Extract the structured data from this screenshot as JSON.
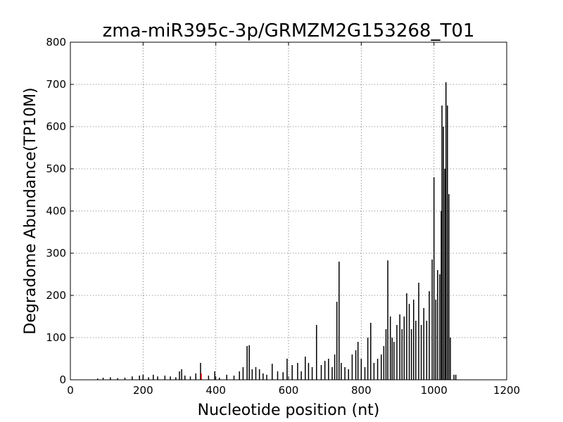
{
  "chart_data": {
    "type": "stem",
    "title": "zma-miR395c-3p/GRMZM2G153268_T01",
    "xlabel": "Nucleotide position (nt)",
    "ylabel": "Degradome Abundance(TP10M)",
    "xlim": [
      0,
      1200
    ],
    "xticks": [
      0,
      200,
      400,
      600,
      800,
      1000,
      1200
    ],
    "ylim": [
      0,
      800
    ],
    "yticks": [
      0,
      100,
      200,
      300,
      400,
      500,
      600,
      700,
      800
    ],
    "grid": true,
    "series": [
      {
        "color": "#000000",
        "x": [
          75,
          90,
          110,
          130,
          150,
          170,
          190,
          200,
          215,
          228,
          240,
          260,
          275,
          290,
          300,
          306,
          315,
          330,
          345,
          358,
          380,
          397,
          410,
          430,
          450,
          465,
          475,
          486,
          492,
          500,
          510,
          520,
          530,
          540,
          555,
          570,
          585,
          596,
          610,
          625,
          635,
          646,
          655,
          665,
          677,
          690,
          700,
          710,
          720,
          727,
          733,
          739,
          745,
          755,
          765,
          775,
          785,
          791,
          800,
          810,
          818,
          826,
          835,
          845,
          855,
          862,
          868,
          873,
          880,
          885,
          890,
          898,
          906,
          912,
          918,
          925,
          932,
          938,
          944,
          950,
          958,
          965,
          972,
          980,
          987,
          995,
          1000,
          1005,
          1010,
          1016,
          1020,
          1022,
          1026,
          1030,
          1033,
          1037,
          1041,
          1045,
          1055,
          1060
        ],
        "values": [
          3,
          5,
          6,
          4,
          5,
          8,
          10,
          12,
          6,
          12,
          8,
          10,
          8,
          6,
          20,
          25,
          10,
          8,
          15,
          40,
          10,
          20,
          5,
          12,
          10,
          20,
          30,
          80,
          82,
          25,
          30,
          25,
          15,
          12,
          38,
          20,
          18,
          50,
          35,
          40,
          20,
          55,
          40,
          30,
          130,
          35,
          45,
          50,
          30,
          60,
          185,
          280,
          40,
          30,
          25,
          60,
          70,
          90,
          50,
          30,
          100,
          135,
          40,
          50,
          60,
          80,
          120,
          283,
          150,
          100,
          90,
          130,
          155,
          120,
          150,
          205,
          180,
          120,
          190,
          140,
          230,
          130,
          170,
          140,
          210,
          285,
          480,
          190,
          260,
          250,
          400,
          650,
          600,
          500,
          705,
          650,
          440,
          100,
          12,
          12
        ]
      },
      {
        "color": "#ff0000",
        "x": [
          360
        ],
        "values": [
          15
        ]
      }
    ]
  }
}
